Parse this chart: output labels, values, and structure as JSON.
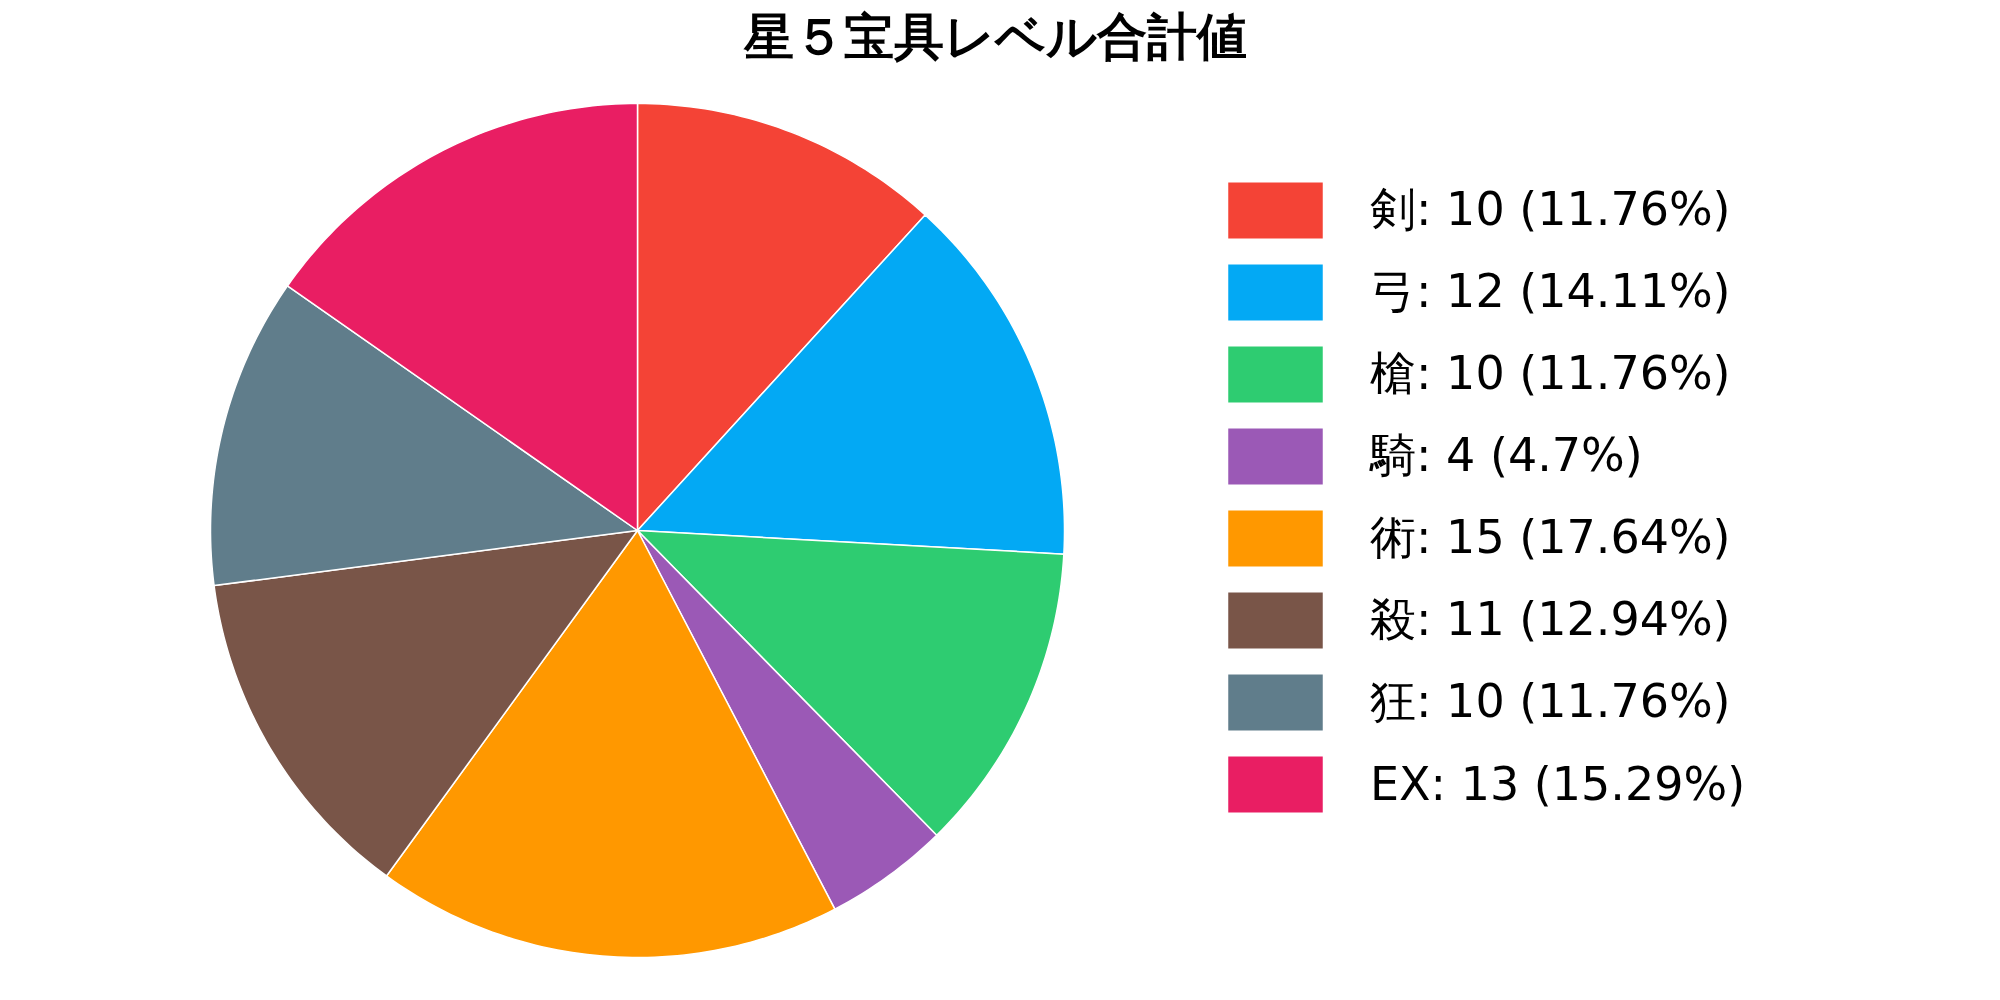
{
  "chart_data": {
    "type": "pie",
    "title": "星５宝具レベル合計値",
    "categories": [
      "剣: 10 (11.76%)",
      "弓: 12 (14.11%)",
      "槍: 10 (11.76%)",
      "騎: 4 (4.7%)",
      "術: 15 (17.64%)",
      "殺: 11 (12.94%)",
      "狂: 10 (11.76%)",
      "EX: 13 (15.29%)"
    ],
    "values": [
      10,
      12,
      10,
      4,
      15,
      11,
      10,
      13
    ],
    "colors": [
      "#f44336",
      "#03a9f4",
      "#2ecc71",
      "#9b59b6",
      "#ff9800",
      "#795548",
      "#607d8b",
      "#e91e63"
    ],
    "legend": "right"
  }
}
